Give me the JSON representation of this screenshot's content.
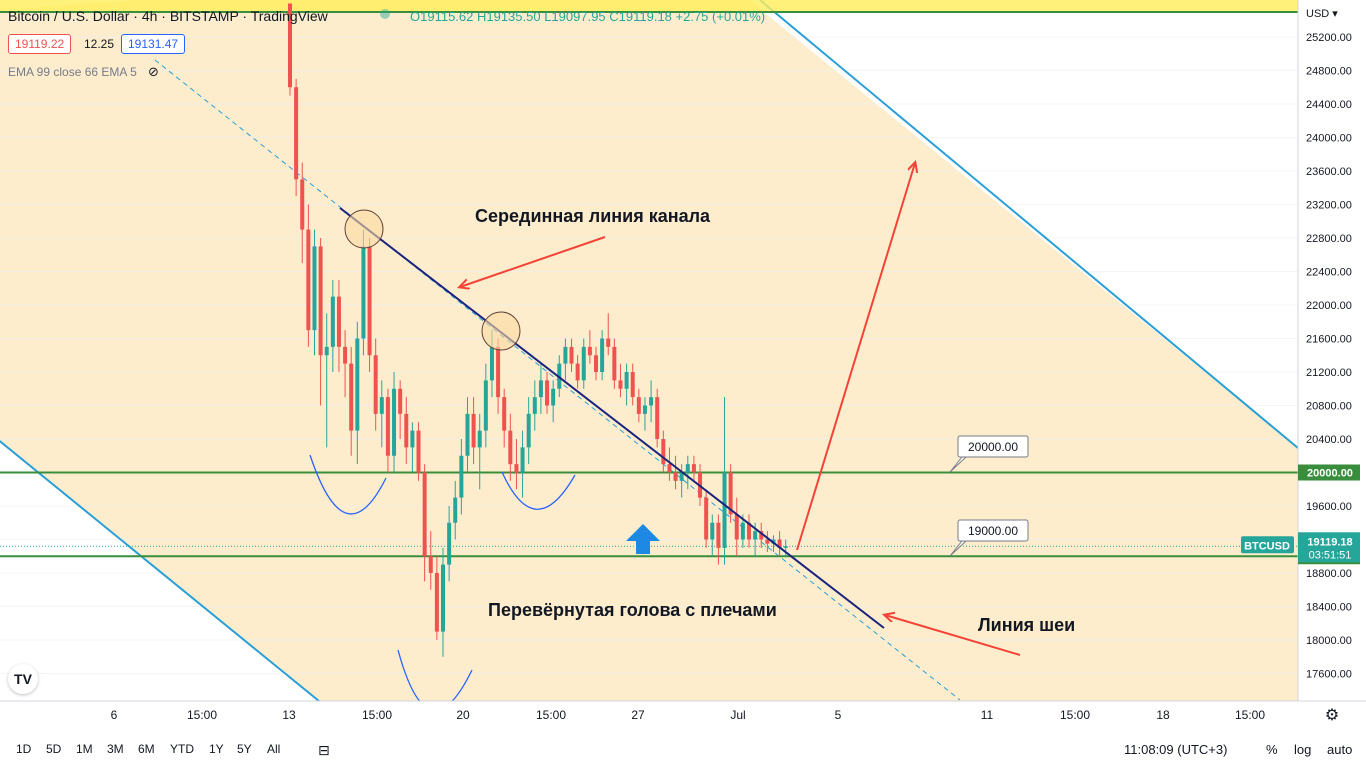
{
  "header": {
    "title": "Bitcoin / U.S. Dollar · 4h · BITSTAMP · TradingView",
    "ohlc": "O19115.62 H19135.50 L19097.95 C19119.18 +2.75 (+0.01%)",
    "bid": "19119.22",
    "spread": "12.25",
    "ask": "19131.47",
    "indicator": "EMA 99 close 66 EMA 5"
  },
  "price_axis": {
    "currency": "USD",
    "symbol_tag": "BTCUSD",
    "current_price": "19119.18",
    "countdown": "03:51:51",
    "level_20000": "20000.00",
    "level_19000": "19000.00"
  },
  "annotations": {
    "channel_midline": "Серединная линия канала",
    "inverse_hs": "Перевёрнутая голова с плечами",
    "neckline": "Линия шеи",
    "callout_20000": "20000.00",
    "callout_19000": "19000.00"
  },
  "colors": {
    "up": "#26a69a",
    "down": "#ef5350",
    "channel_fill": "#fdebc8",
    "channel_line": "#2a9fd6",
    "level_line": "#388e3c",
    "midline": "#1a237e",
    "arrow": "#f44336",
    "current_price": "#26a69a"
  },
  "timeframes": [
    "1D",
    "5D",
    "1M",
    "3M",
    "6M",
    "YTD",
    "1Y",
    "5Y",
    "All"
  ],
  "footer": {
    "clock": "11:08:09 (UTC+3)",
    "percent": "%",
    "log": "log",
    "auto": "auto"
  },
  "chart_data": {
    "type": "candlestick",
    "symbol": "BTCUSD",
    "exchange": "BITSTAMP",
    "interval": "4h",
    "ylim": [
      17300,
      25500
    ],
    "y_ticks": [
      17600,
      18000,
      18400,
      18800,
      19200,
      19600,
      20000,
      20400,
      20800,
      21200,
      21600,
      22000,
      22400,
      22800,
      23200,
      23600,
      24000,
      24400,
      24800,
      25200
    ],
    "x_ticks": [
      "6",
      "15:00",
      "13",
      "15:00",
      "20",
      "15:00",
      "27",
      "Jul",
      "5",
      "11",
      "15:00",
      "18",
      "15:00"
    ],
    "horizontal_levels": [
      20000,
      19000,
      25400
    ],
    "current_price": 19119.18,
    "candles_ohlc": [
      [
        25600,
        25600,
        24500,
        24600
      ],
      [
        24600,
        24700,
        23300,
        23500
      ],
      [
        23500,
        23700,
        22500,
        22900
      ],
      [
        22900,
        23200,
        21500,
        21700
      ],
      [
        21700,
        22900,
        21400,
        22700
      ],
      [
        22700,
        22800,
        20800,
        21400
      ],
      [
        21400,
        21900,
        20300,
        21500
      ],
      [
        21500,
        22300,
        21200,
        22100
      ],
      [
        22100,
        22300,
        21200,
        21500
      ],
      [
        21500,
        21700,
        20900,
        21300
      ],
      [
        21300,
        21500,
        20200,
        20500
      ],
      [
        20500,
        21800,
        20100,
        21600
      ],
      [
        21600,
        22900,
        21400,
        22700
      ],
      [
        22700,
        22800,
        21200,
        21400
      ],
      [
        21400,
        21600,
        20500,
        20700
      ],
      [
        20700,
        21100,
        20300,
        20900
      ],
      [
        20900,
        21000,
        20000,
        20200
      ],
      [
        20200,
        21200,
        20000,
        21000
      ],
      [
        21000,
        21100,
        20400,
        20700
      ],
      [
        20700,
        20900,
        20100,
        20300
      ],
      [
        20300,
        20600,
        20000,
        20500
      ],
      [
        20500,
        20600,
        19900,
        20000
      ],
      [
        20000,
        20100,
        18700,
        19000
      ],
      [
        19000,
        19300,
        18600,
        18800
      ],
      [
        18800,
        19000,
        18000,
        18100
      ],
      [
        18100,
        19100,
        17800,
        18900
      ],
      [
        18900,
        19600,
        18700,
        19400
      ],
      [
        19400,
        19900,
        19200,
        19700
      ],
      [
        19700,
        20400,
        19500,
        20200
      ],
      [
        20200,
        20900,
        20000,
        20700
      ],
      [
        20700,
        20900,
        20100,
        20300
      ],
      [
        20300,
        20700,
        19800,
        20500
      ],
      [
        20500,
        21300,
        20300,
        21100
      ],
      [
        21100,
        21700,
        20900,
        21500
      ],
      [
        21500,
        21600,
        20700,
        20900
      ],
      [
        20900,
        21000,
        20300,
        20500
      ],
      [
        20500,
        20700,
        19900,
        20100
      ],
      [
        20100,
        20400,
        19800,
        20000
      ],
      [
        20000,
        20500,
        19700,
        20300
      ],
      [
        20300,
        20900,
        20100,
        20700
      ],
      [
        20700,
        21100,
        20500,
        20900
      ],
      [
        20900,
        21300,
        20700,
        21100
      ],
      [
        21100,
        21200,
        20700,
        20800
      ],
      [
        20800,
        21100,
        20600,
        21000
      ],
      [
        21000,
        21400,
        20900,
        21300
      ],
      [
        21300,
        21600,
        21100,
        21500
      ],
      [
        21500,
        21600,
        21200,
        21300
      ],
      [
        21300,
        21400,
        21000,
        21100
      ],
      [
        21100,
        21600,
        21000,
        21500
      ],
      [
        21500,
        21700,
        21300,
        21400
      ],
      [
        21400,
        21500,
        21100,
        21200
      ],
      [
        21200,
        21700,
        21100,
        21600
      ],
      [
        21600,
        21900,
        21400,
        21500
      ],
      [
        21500,
        21600,
        21000,
        21100
      ],
      [
        21100,
        21300,
        20900,
        21000
      ],
      [
        21000,
        21300,
        20800,
        21200
      ],
      [
        21200,
        21300,
        20800,
        20900
      ],
      [
        20900,
        21000,
        20600,
        20700
      ],
      [
        20700,
        20900,
        20500,
        20800
      ],
      [
        20800,
        21100,
        20600,
        20900
      ],
      [
        20900,
        21000,
        20300,
        20400
      ],
      [
        20400,
        20500,
        20000,
        20100
      ],
      [
        20100,
        20300,
        19900,
        20000
      ],
      [
        20000,
        20200,
        19800,
        19900
      ],
      [
        19900,
        20100,
        19700,
        20000
      ],
      [
        20000,
        20200,
        19800,
        20100
      ],
      [
        20100,
        20200,
        19900,
        20000
      ],
      [
        20000,
        20100,
        19600,
        19700
      ],
      [
        19700,
        19800,
        19100,
        19200
      ],
      [
        19200,
        19500,
        19000,
        19400
      ],
      [
        19400,
        19500,
        18900,
        19100
      ],
      [
        19100,
        20900,
        18900,
        20000
      ],
      [
        20000,
        20100,
        19400,
        19500
      ],
      [
        19500,
        19700,
        19000,
        19200
      ],
      [
        19200,
        19500,
        19100,
        19400
      ],
      [
        19400,
        19500,
        19100,
        19200
      ],
      [
        19200,
        19400,
        19000,
        19300
      ],
      [
        19300,
        19400,
        19100,
        19200
      ],
      [
        19200,
        19300,
        19050,
        19150
      ],
      [
        19150,
        19250,
        19050,
        19200
      ],
      [
        19200,
        19300,
        19000,
        19100
      ],
      [
        19100,
        19200,
        19000,
        19119
      ]
    ]
  }
}
